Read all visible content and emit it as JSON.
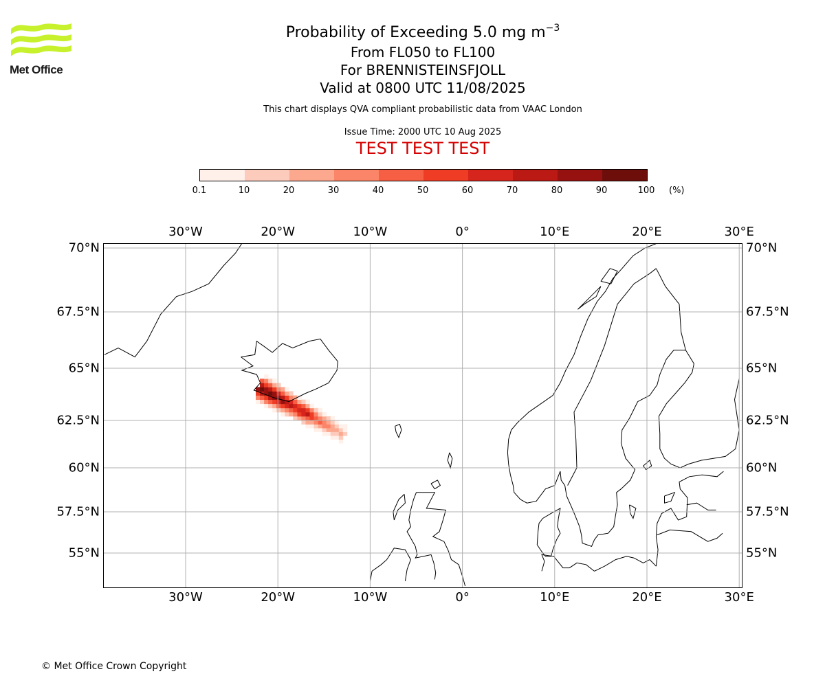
{
  "logo": {
    "text": "Met Office"
  },
  "title": {
    "line1_main": "Probability of Exceeding 5.0 mg m",
    "line1_exp": "−3",
    "line2": "From FL050 to FL100",
    "line3": "For BRENNISTEINSFJOLL",
    "line4": "Valid at 0800 UTC 11/08/2025",
    "subtitle": "This chart displays QVA compliant probabilistic data from VAAC London",
    "issue_time": "Issue Time: 2000 UTC 10 Aug 2025",
    "test_banner": "TEST TEST TEST"
  },
  "colorbar": {
    "ticks": [
      "0.1",
      "10",
      "20",
      "30",
      "40",
      "50",
      "60",
      "70",
      "80",
      "90",
      "100"
    ],
    "colors": [
      "#fff0ea",
      "#fdcbbb",
      "#fca88f",
      "#fb8568",
      "#f75f45",
      "#ef3d25",
      "#d6251c",
      "#ba1914",
      "#961210",
      "#6e0e0b"
    ],
    "unit": "(%)"
  },
  "map": {
    "lon_labels": [
      "30°W",
      "20°W",
      "10°W",
      "0°",
      "10°E",
      "20°E",
      "30°E"
    ],
    "lon_values": [
      -30,
      -20,
      -10,
      0,
      10,
      20,
      30
    ],
    "lat_labels": [
      "70°N",
      "67.5°N",
      "65°N",
      "62.5°N",
      "60°N",
      "57.5°N",
      "55°N"
    ],
    "lat_values": [
      70,
      67.5,
      65,
      62.5,
      60,
      57.5,
      55
    ],
    "gridline_color": "#b0b0b0",
    "coastline_color": "#000000",
    "plume": {
      "source": "BRENNISTEINSFJOLL",
      "axis": [
        [
          -21.5,
          63.95
        ],
        [
          -12.8,
          61.75
        ]
      ],
      "peak_probability_percent": 100
    }
  },
  "footer": {
    "copyright": "© Met Office Crown Copyright"
  }
}
